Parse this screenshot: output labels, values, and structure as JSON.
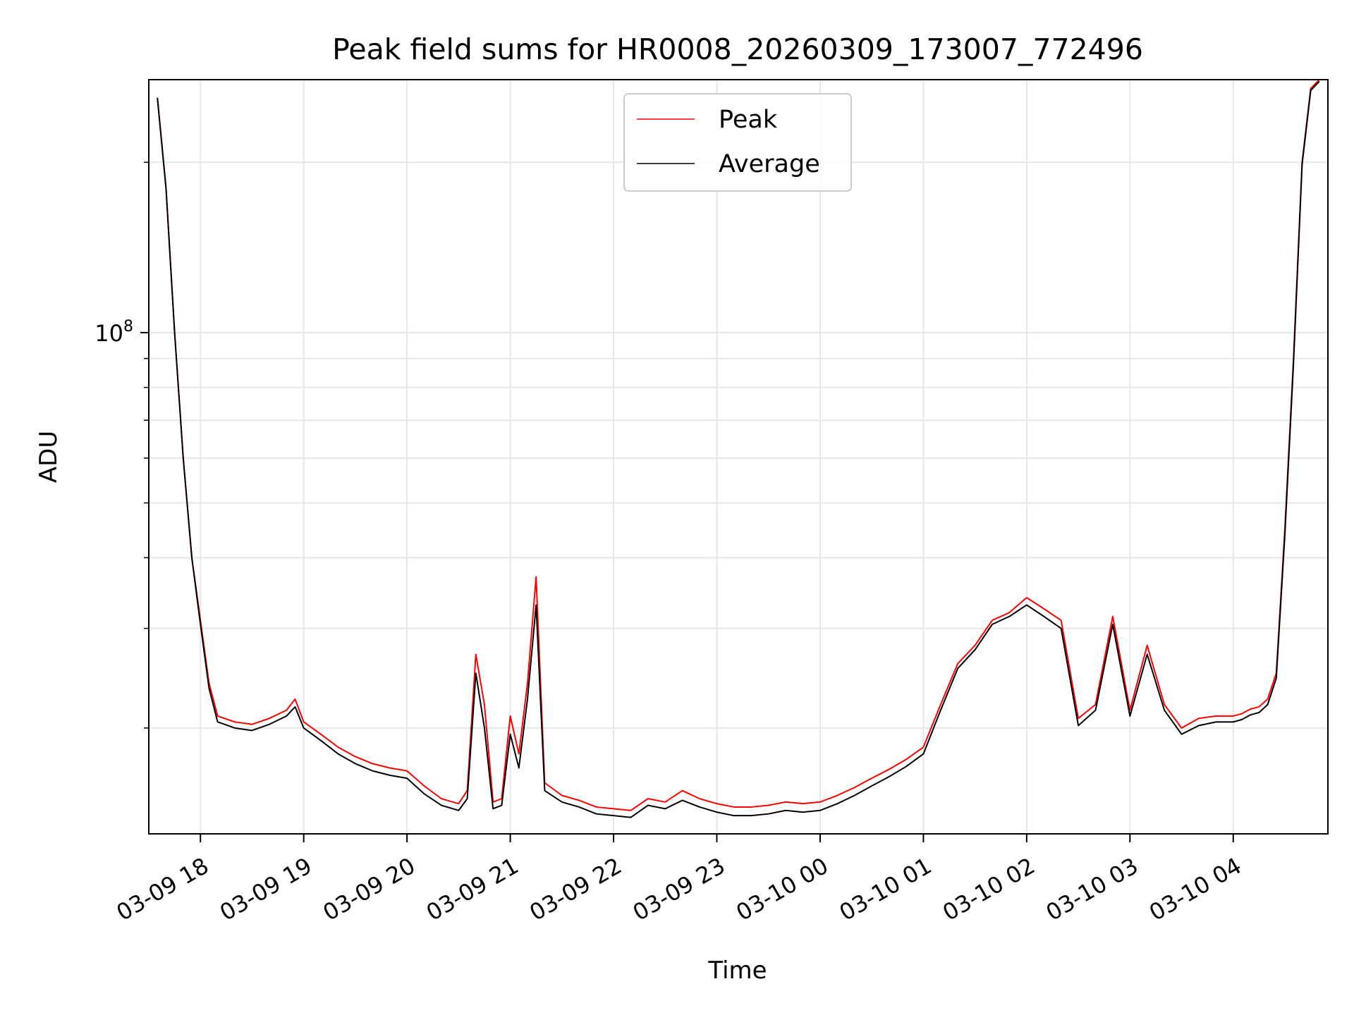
{
  "chart_data": {
    "type": "line",
    "title": "Peak field sums for HR0008_20260309_173007_772496",
    "xlabel": "Time",
    "ylabel": "ADU",
    "y_scale": "log",
    "grid": true,
    "legend_placement": "top-center",
    "xlim": [
      "03-09 17:30",
      "03-10 04:55"
    ],
    "ylim": [
      13000000,
      280000000
    ],
    "x_ticks": [
      "03-09 18",
      "03-09 19",
      "03-09 20",
      "03-09 21",
      "03-09 22",
      "03-09 23",
      "03-10 00",
      "03-10 01",
      "03-10 02",
      "03-10 03",
      "03-10 04"
    ],
    "y_tick_major": {
      "base": "10",
      "exponent": "8"
    },
    "y_tick_minor_values": [
      20000000,
      30000000,
      40000000,
      50000000,
      60000000,
      70000000,
      80000000,
      90000000,
      200000000
    ],
    "x": [
      "17:35",
      "17:40",
      "17:45",
      "17:50",
      "17:55",
      "18:00",
      "18:05",
      "18:10",
      "18:20",
      "18:30",
      "18:40",
      "18:50",
      "18:55",
      "19:00",
      "19:10",
      "19:20",
      "19:30",
      "19:40",
      "19:50",
      "20:00",
      "20:10",
      "20:20",
      "20:30",
      "20:35",
      "20:40",
      "20:45",
      "20:50",
      "20:55",
      "21:00",
      "21:05",
      "21:10",
      "21:15",
      "21:20",
      "21:30",
      "21:40",
      "21:50",
      "22:00",
      "22:10",
      "22:20",
      "22:30",
      "22:40",
      "22:50",
      "23:00",
      "23:10",
      "23:20",
      "23:30",
      "23:40",
      "23:50",
      "00:00",
      "00:10",
      "00:20",
      "00:30",
      "00:40",
      "00:50",
      "01:00",
      "01:10",
      "01:20",
      "01:30",
      "01:40",
      "01:50",
      "02:00",
      "02:10",
      "02:20",
      "02:30",
      "02:40",
      "02:50",
      "03:00",
      "03:10",
      "03:20",
      "03:30",
      "03:40",
      "03:50",
      "04:00",
      "04:05",
      "04:10",
      "04:15",
      "04:20",
      "04:25",
      "04:30",
      "04:35",
      "04:40",
      "04:45",
      "04:50"
    ],
    "series": [
      {
        "name": "Peak",
        "color": "#ff0000",
        "values": [
          260000000,
          180000000,
          100000000,
          60000000,
          40000000,
          31000000,
          24000000,
          21000000,
          20500000,
          20300000,
          20800000,
          21500000,
          22500000,
          20500000,
          19500000,
          18500000,
          17800000,
          17300000,
          17000000,
          16800000,
          15800000,
          15000000,
          14700000,
          15500000,
          27000000,
          22000000,
          14800000,
          15000000,
          21000000,
          18000000,
          24000000,
          37000000,
          16000000,
          15200000,
          14900000,
          14500000,
          14400000,
          14300000,
          15000000,
          14800000,
          15500000,
          15000000,
          14700000,
          14500000,
          14500000,
          14600000,
          14800000,
          14700000,
          14800000,
          15200000,
          15700000,
          16300000,
          16900000,
          17600000,
          18500000,
          22000000,
          26000000,
          28000000,
          31000000,
          32000000,
          34000000,
          32500000,
          31000000,
          20800000,
          22000000,
          31500000,
          21500000,
          28000000,
          22000000,
          20000000,
          20800000,
          21000000,
          21000000,
          21200000,
          21600000,
          21800000,
          22500000,
          25000000,
          45000000,
          90000000,
          200000000,
          270000000,
          280000000
        ]
      },
      {
        "name": "Average",
        "color": "#000000",
        "values": [
          260000000,
          180000000,
          100000000,
          60000000,
          40000000,
          30500000,
          23500000,
          20500000,
          20000000,
          19800000,
          20300000,
          21000000,
          21800000,
          20000000,
          19000000,
          18000000,
          17300000,
          16800000,
          16500000,
          16300000,
          15300000,
          14600000,
          14300000,
          15000000,
          25000000,
          20000000,
          14400000,
          14600000,
          19500000,
          17000000,
          22500000,
          33000000,
          15500000,
          14800000,
          14500000,
          14100000,
          14000000,
          13900000,
          14600000,
          14400000,
          14900000,
          14500000,
          14200000,
          14000000,
          14000000,
          14100000,
          14300000,
          14200000,
          14300000,
          14700000,
          15200000,
          15800000,
          16400000,
          17100000,
          18000000,
          21500000,
          25500000,
          27500000,
          30500000,
          31500000,
          33000000,
          31500000,
          30000000,
          20200000,
          21500000,
          30500000,
          21000000,
          27000000,
          21500000,
          19500000,
          20200000,
          20500000,
          20500000,
          20700000,
          21100000,
          21300000,
          22000000,
          24500000,
          44000000,
          88000000,
          198000000,
          268000000,
          278000000
        ]
      }
    ]
  }
}
